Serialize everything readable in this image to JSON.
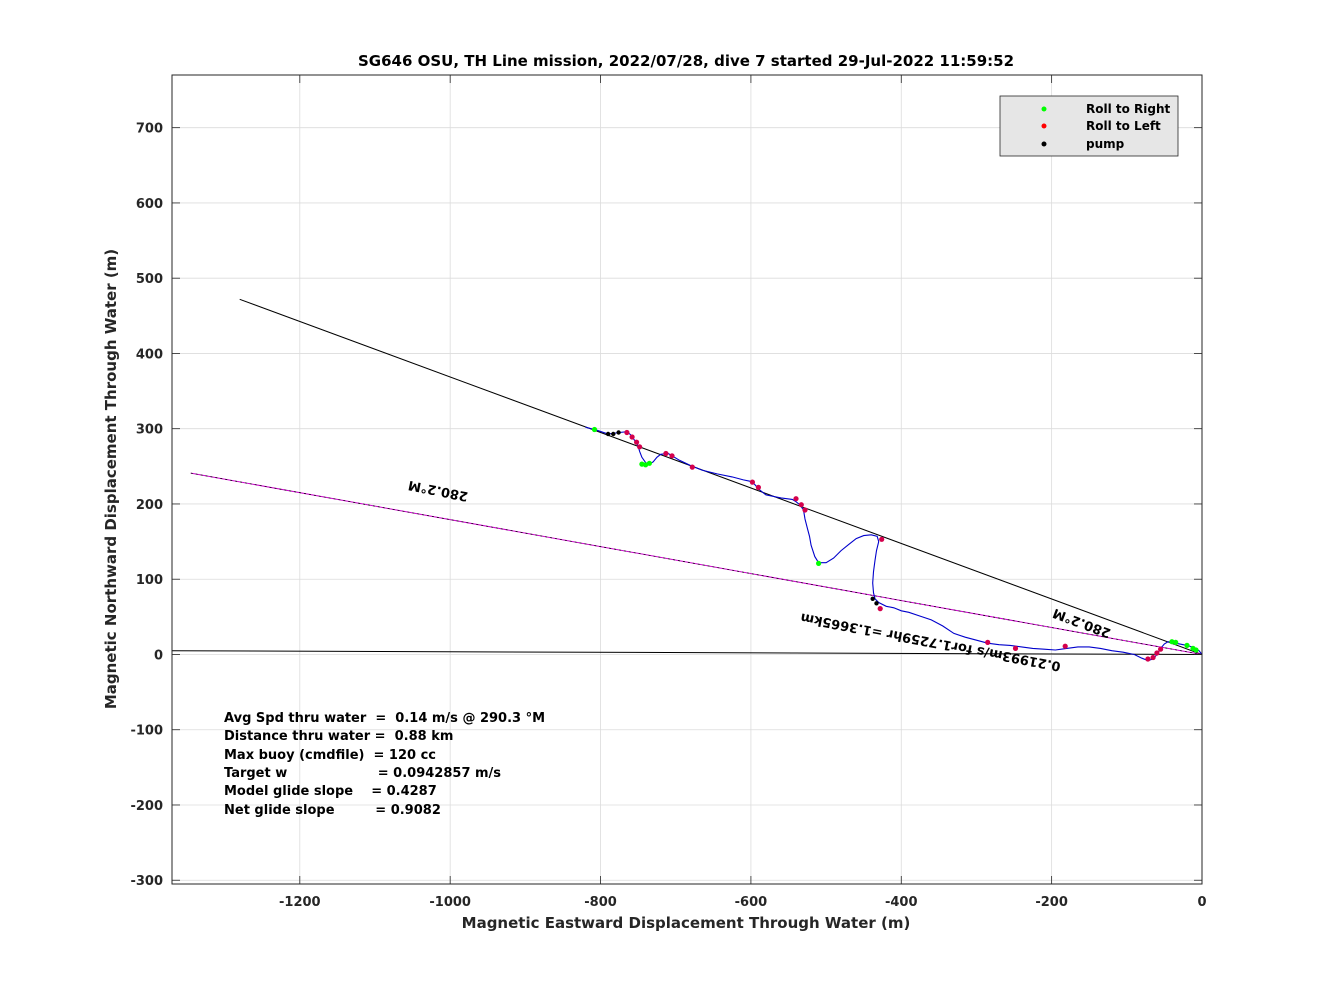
{
  "chart_data": {
    "type": "line",
    "title": "SG646 OSU, TH Line mission, 2022/07/28, dive 7 started 29-Jul-2022 11:59:52",
    "xlabel": "Magnetic Eastward Displacement Through Water (m)",
    "ylabel": "Magnetic Northward Displacement Through Water (m)",
    "xlim": [
      -1370,
      0
    ],
    "ylim": [
      -305,
      770
    ],
    "xticks": [
      -1200,
      -1000,
      -800,
      -600,
      -400,
      -200,
      0
    ],
    "yticks": [
      -300,
      -200,
      -100,
      0,
      100,
      200,
      300,
      400,
      500,
      600,
      700
    ],
    "grid": true,
    "legend": {
      "placement": "top-right",
      "entries": [
        {
          "label": "Roll to Right",
          "color": "#00ff00"
        },
        {
          "label": "Roll to Left",
          "color": "#ff0000"
        },
        {
          "label": "pump",
          "color": "#000000"
        }
      ]
    },
    "stats": [
      "Avg Spd thru water  =  0.14 m/s @ 290.3 °M",
      "Distance thru water =  0.88 km",
      "Max buoy (cmdfile)  = 120 cc",
      "Target w                    = 0.0942857 m/s",
      "Model glide slope    = 0.4287",
      "Net glide slope         = 0.9082"
    ],
    "annotations": [
      {
        "text": "280.2°M",
        "x": -1015,
        "y": 223,
        "rotation": 191.3
      },
      {
        "text": "280.2°M",
        "x": -158,
        "y": 47,
        "rotation": 200.6
      },
      {
        "text": "0.21993m/s for1.7259hr =1.3665km",
        "x": -360,
        "y": 22,
        "rotation": 190.7
      }
    ],
    "series": [
      {
        "name": "Heading line 1",
        "color": "#000000",
        "x": [
          -1280,
          0
        ],
        "y": [
          472,
          0
        ]
      },
      {
        "name": "Heading line 2",
        "color": "#cc00cc",
        "x": [
          -1345,
          0
        ],
        "y": [
          241,
          0
        ]
      },
      {
        "name": "Current line",
        "color": "#000000",
        "x": [
          -1370,
          0
        ],
        "y": [
          5,
          0
        ]
      },
      {
        "name": "Track",
        "color": "#0000cc",
        "x": [
          -820,
          -805,
          -790,
          -775,
          -765,
          -760,
          -755,
          -750,
          -748,
          -745,
          -740,
          -735,
          -730,
          -725,
          -720,
          -710,
          -695,
          -680,
          -665,
          -645,
          -625,
          -610,
          -600,
          -595,
          -590,
          -580,
          -560,
          -545,
          -540,
          -535,
          -530,
          -528,
          -525,
          -522,
          -520,
          -515,
          -510,
          -500,
          -490,
          -480,
          -470,
          -460,
          -450,
          -440,
          -432,
          -430,
          -433,
          -435,
          -437,
          -438,
          -437,
          -435,
          -430,
          -420,
          -410,
          -400,
          -390,
          -375,
          -360,
          -345,
          -330,
          -315,
          -300,
          -285,
          -270,
          -255,
          -240,
          -225,
          -210,
          -195,
          -180,
          -165,
          -150,
          -135,
          -120,
          -105,
          -90,
          -80,
          -72,
          -65,
          -60,
          -55,
          -50,
          -45,
          -40,
          -30,
          -20,
          -10,
          -4,
          0
        ],
        "y": [
          302,
          298,
          293,
          295,
          296,
          292,
          285,
          277,
          270,
          262,
          255,
          253,
          256,
          262,
          266,
          267,
          258,
          251,
          245,
          240,
          236,
          232,
          230,
          226,
          220,
          212,
          208,
          206,
          203,
          199,
          192,
          180,
          168,
          157,
          145,
          130,
          122,
          122,
          128,
          138,
          146,
          154,
          158,
          159,
          157,
          150,
          138,
          125,
          110,
          95,
          82,
          74,
          69,
          64,
          62,
          58,
          56,
          51,
          46,
          38,
          28,
          23,
          19,
          15,
          13,
          12,
          10,
          8,
          7,
          6,
          8,
          10,
          10,
          8,
          5,
          3,
          0,
          -5,
          -8,
          -6,
          0,
          8,
          14,
          17,
          16,
          14,
          12,
          9,
          5,
          0
        ]
      },
      {
        "name": "Roll to Right",
        "color": "#00ff00",
        "type": "scatter",
        "x": [
          -808,
          -745,
          -740,
          -735,
          -510,
          -40,
          -35,
          -20,
          -12,
          -8
        ],
        "y": [
          299,
          253,
          252,
          254,
          121,
          17,
          16,
          12,
          8,
          6
        ]
      },
      {
        "name": "Roll to Left",
        "color": "#ff0000",
        "type": "scatter",
        "x": [
          -765,
          -758,
          -752,
          -748,
          -713,
          -705,
          -678,
          -598,
          -590,
          -540,
          -533,
          -528,
          -426,
          -428,
          -285,
          -248,
          -182,
          -72,
          -65,
          -60,
          -55
        ],
        "y": [
          295,
          289,
          282,
          276,
          267,
          264,
          249,
          229,
          222,
          207,
          199,
          192,
          153,
          61,
          16,
          8,
          11,
          -6,
          -4,
          2,
          7
        ],
        "markers_include_magenta": true
      },
      {
        "name": "pump",
        "color": "#000000",
        "type": "scatter",
        "x": [
          -790,
          -783,
          -776,
          -438,
          -433
        ],
        "y": [
          293,
          293,
          295,
          74,
          68
        ]
      }
    ]
  }
}
